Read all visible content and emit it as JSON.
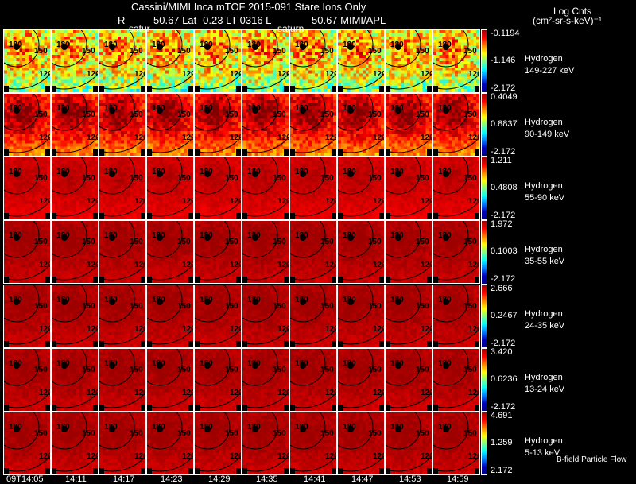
{
  "header": {
    "title": "Cassini/MIMI Inca mTOF  2015-091    Stare   Ions Only",
    "line2_left": "R",
    "line2_mid": "50.67 Lat -0.23 LT 0316 L",
    "line2_right": "50.67  MIMI/APL",
    "overlay_left": "satur",
    "overlay_mid": "saturn"
  },
  "units": {
    "line1": "Log Cnts",
    "line2": "(cm²-sr-s-keV)⁻¹"
  },
  "footer_note": "B-field Particle Flow",
  "chart_data": {
    "type": "heatmap",
    "description_title": "Cassini/MIMI Inca mTOF 2015-091 Stare Ions Only",
    "times": [
      "09T14:05",
      "14:11",
      "14:17",
      "14:23",
      "14:29",
      "14:35",
      "14:41",
      "14:47",
      "14:53",
      "14:59"
    ],
    "contour_labels": [
      "180",
      "150",
      "120"
    ],
    "rows": [
      {
        "species": "Hydrogen",
        "energy": "149-227 keV",
        "cmax": "-0.1194",
        "cmid": "-1.146",
        "cmin": "-2.172",
        "level": 0.55
      },
      {
        "species": "Hydrogen",
        "energy": "90-149 keV",
        "cmax": "0.4049",
        "cmid": "0.8837",
        "cmin": "-2.172",
        "level": 0.78
      },
      {
        "species": "Hydrogen",
        "energy": "55-90 keV",
        "cmax": "1.211",
        "cmid": "0.4808",
        "cmin": "-2.172",
        "level": 0.9
      },
      {
        "species": "Hydrogen",
        "energy": "35-55 keV",
        "cmax": "1.972",
        "cmid": "0.1003",
        "cmin": "-2.172",
        "level": 0.93
      },
      {
        "species": "Hydrogen",
        "energy": "24-35 keV",
        "cmax": "2.666",
        "cmid": "0.2467",
        "cmin": "-2.172",
        "level": 0.93
      },
      {
        "species": "Hydrogen",
        "energy": "13-24 keV",
        "cmax": "3.420",
        "cmid": "0.6236",
        "cmin": "-2.172",
        "level": 0.93
      },
      {
        "species": "Hydrogen",
        "energy": "5-13 keV",
        "cmax": "4.691",
        "cmid": "1.259",
        "cmin": "2.172",
        "level": 0.93
      }
    ]
  }
}
